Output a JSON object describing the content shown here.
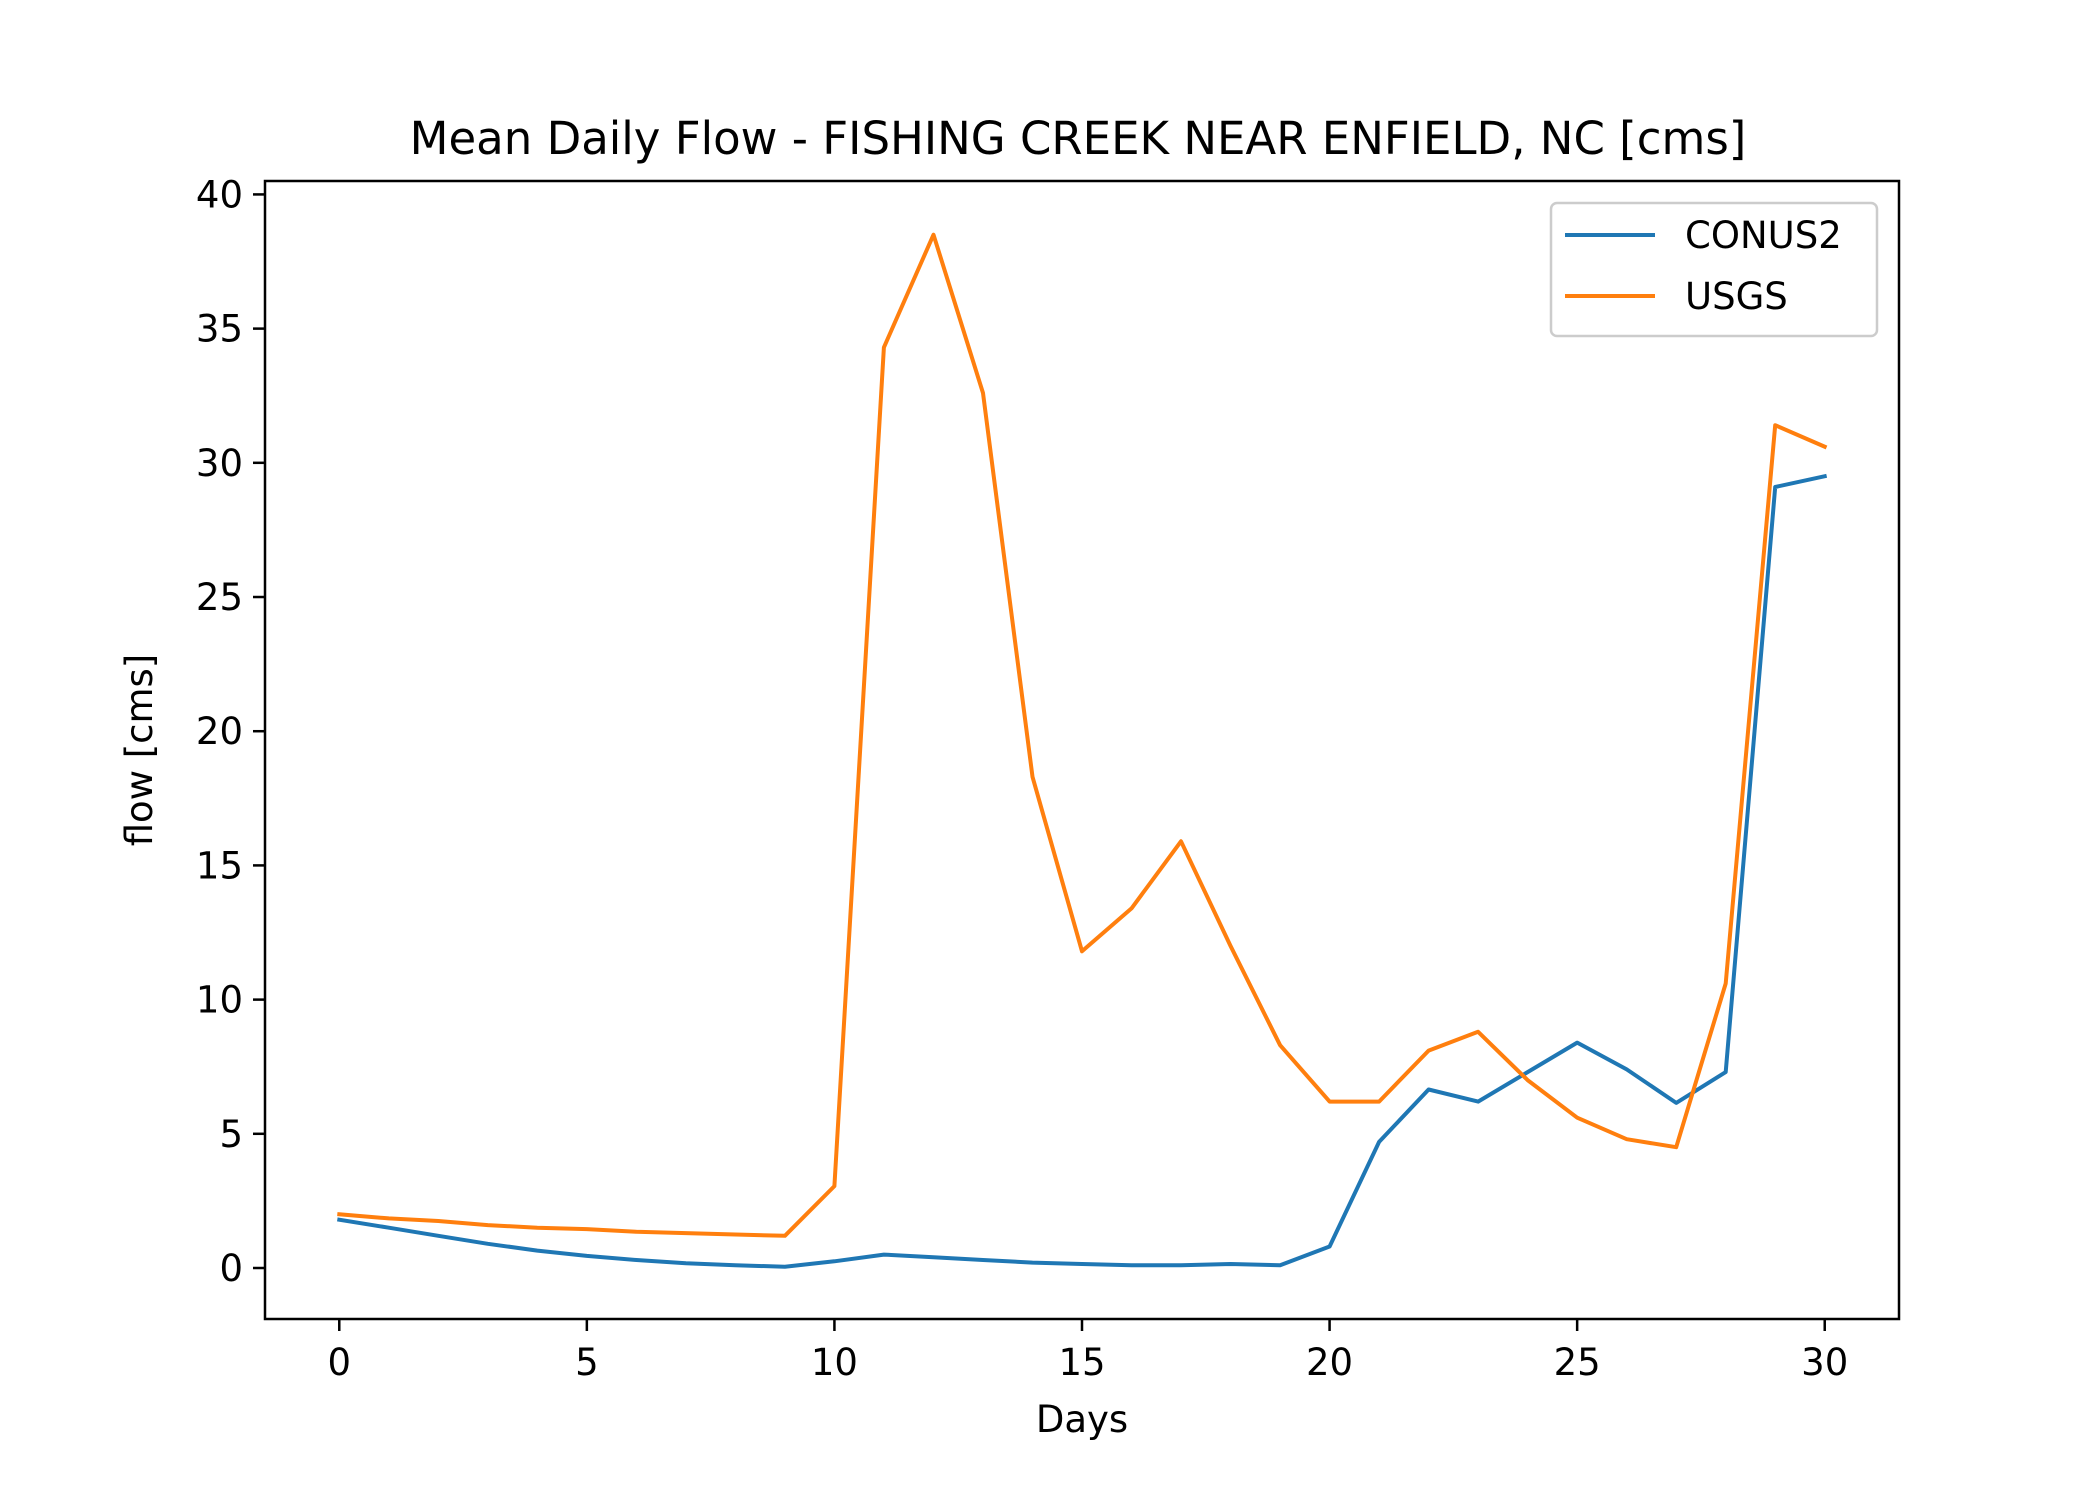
{
  "chart_data": {
    "type": "line",
    "title": "Mean Daily Flow - FISHING CREEK NEAR ENFIELD, NC [cms]",
    "xlabel": "Days",
    "ylabel": "flow [cms]",
    "xlim": [
      -1.5,
      31.5
    ],
    "ylim": [
      -1.9,
      40.5
    ],
    "xticks": [
      0,
      5,
      10,
      15,
      20,
      25,
      30
    ],
    "yticks": [
      0,
      5,
      10,
      15,
      20,
      25,
      30,
      35,
      40
    ],
    "grid": false,
    "legend_position": "top-right",
    "x": [
      0,
      1,
      2,
      3,
      4,
      5,
      6,
      7,
      8,
      9,
      10,
      11,
      12,
      13,
      14,
      15,
      16,
      17,
      18,
      19,
      20,
      21,
      22,
      23,
      24,
      25,
      26,
      27,
      28,
      29,
      30
    ],
    "series": [
      {
        "name": "CONUS2",
        "color": "#1f77b4",
        "values": [
          1.8,
          1.5,
          1.2,
          0.9,
          0.65,
          0.45,
          0.3,
          0.18,
          0.1,
          0.05,
          0.25,
          0.5,
          0.4,
          0.3,
          0.2,
          0.15,
          0.1,
          0.1,
          0.15,
          0.1,
          0.8,
          4.7,
          6.65,
          6.2,
          7.3,
          8.4,
          7.4,
          6.15,
          7.3,
          29.1,
          29.5
        ]
      },
      {
        "name": "USGS",
        "color": "#ff7f0e",
        "values": [
          2.0,
          1.85,
          1.75,
          1.6,
          1.5,
          1.45,
          1.35,
          1.3,
          1.25,
          1.2,
          3.05,
          34.3,
          38.5,
          32.6,
          18.3,
          11.8,
          13.4,
          15.9,
          12.0,
          8.3,
          6.2,
          6.2,
          8.1,
          8.8,
          7.0,
          5.6,
          4.8,
          4.5,
          10.6,
          31.4,
          30.6
        ]
      }
    ]
  }
}
